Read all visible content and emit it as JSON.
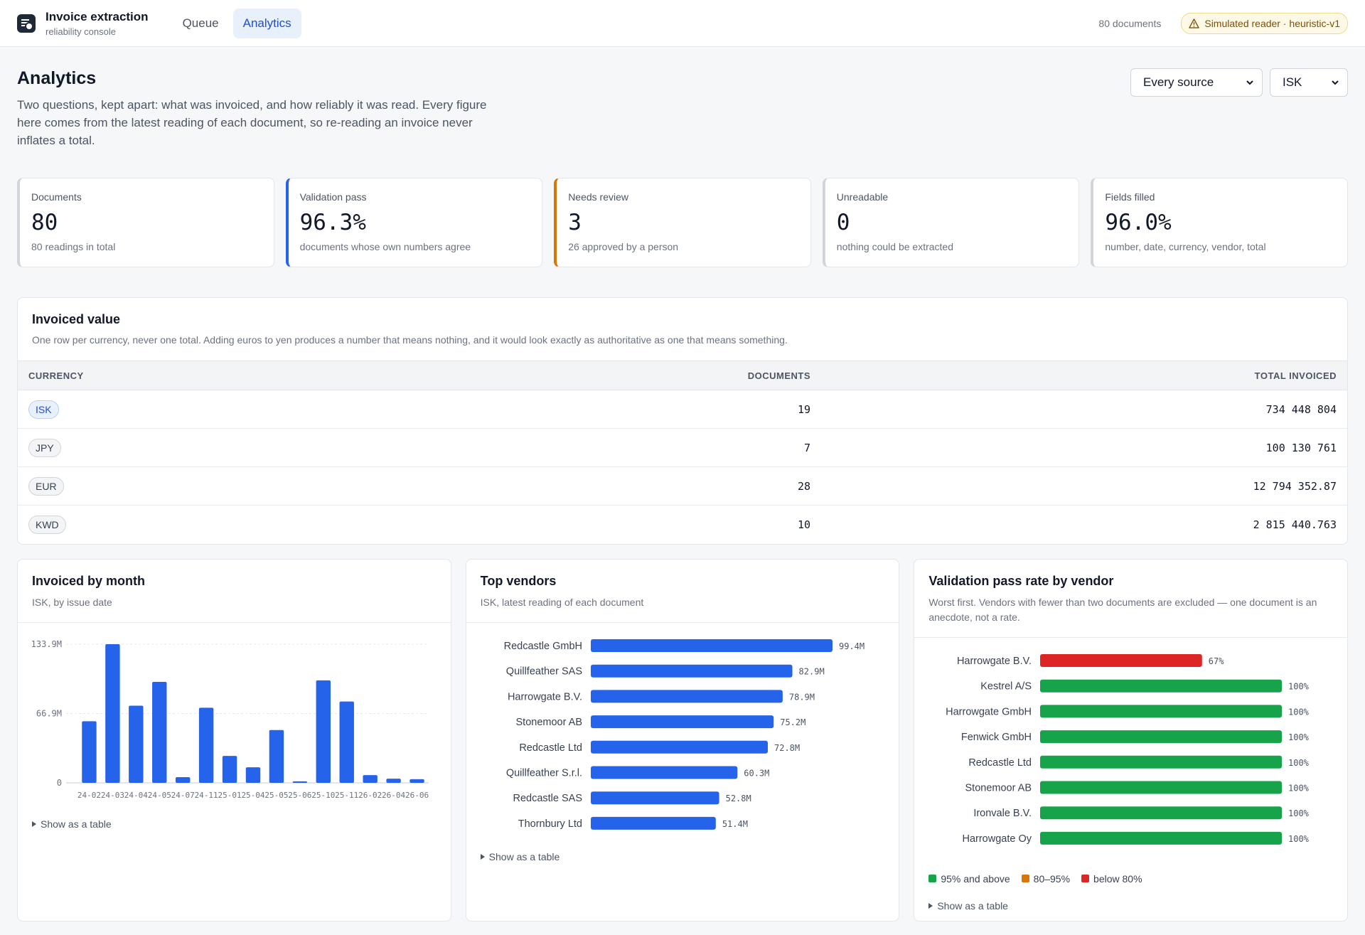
{
  "app": {
    "title": "Invoice extraction",
    "subtitle": "reliability console",
    "nav": [
      "Queue",
      "Analytics"
    ],
    "doc_count": "80 documents",
    "reader_badge": "Simulated reader · heuristic-v1"
  },
  "page": {
    "title": "Analytics",
    "description": "Two questions, kept apart: what was invoiced, and how reliably it was read. Every figure here comes from the latest reading of each document, so re-reading an invoice never inflates a total.",
    "source_filter": "Every source",
    "currency_filter": "ISK"
  },
  "kpis": [
    {
      "label": "Documents",
      "value": "80",
      "sub": "80 readings in total"
    },
    {
      "label": "Validation pass",
      "value": "96.3%",
      "sub": "documents whose own numbers agree"
    },
    {
      "label": "Needs review",
      "value": "3",
      "sub": "26 approved by a person"
    },
    {
      "label": "Unreadable",
      "value": "0",
      "sub": "nothing could be extracted"
    },
    {
      "label": "Fields filled",
      "value": "96.0%",
      "sub": "number, date, currency, vendor, total"
    }
  ],
  "invoiced": {
    "title": "Invoiced value",
    "description": "One row per currency, never one total. Adding euros to yen produces a number that means nothing, and it would look exactly as authoritative as one that means something.",
    "headers": [
      "CURRENCY",
      "DOCUMENTS",
      "TOTAL INVOICED"
    ],
    "rows": [
      {
        "currency": "ISK",
        "documents": "19",
        "total": "734 448 804"
      },
      {
        "currency": "JPY",
        "documents": "7",
        "total": "100 130 761"
      },
      {
        "currency": "EUR",
        "documents": "28",
        "total": "12 794 352.87"
      },
      {
        "currency": "KWD",
        "documents": "10",
        "total": "2 815 440.763"
      }
    ]
  },
  "toggle_label": "Show as a table",
  "chart_data": [
    {
      "type": "bar",
      "title": "Invoiced by month",
      "subtitle": "ISK, by issue date",
      "categories": [
        "24-02",
        "24-03",
        "24-04",
        "24-05",
        "24-07",
        "24-11",
        "25-01",
        "25-04",
        "25-05",
        "25-06",
        "25-10",
        "25-11",
        "26-02",
        "26-04",
        "26-06"
      ],
      "values": [
        59.5,
        133.9,
        74.5,
        97.5,
        5.5,
        72.5,
        26,
        15,
        51,
        1.5,
        99,
        78.5,
        7.5,
        4,
        3.5
      ],
      "yticks": [
        "0",
        "66.9M",
        "133.9M"
      ],
      "ylim": [
        0,
        133.9
      ],
      "unit": "M",
      "grid": true,
      "color": "#2563eb"
    },
    {
      "type": "bar",
      "orientation": "horizontal",
      "title": "Top vendors",
      "subtitle": "ISK, latest reading of each document",
      "categories": [
        "Redcastle GmbH",
        "Quillfeather SAS",
        "Harrowgate B.V.",
        "Stonemoor AB",
        "Redcastle Ltd",
        "Quillfeather S.r.l.",
        "Redcastle SAS",
        "Thornbury Ltd"
      ],
      "values": [
        99.4,
        82.9,
        78.9,
        75.2,
        72.8,
        60.3,
        52.8,
        51.4
      ],
      "labels": [
        "99.4M",
        "82.9M",
        "78.9M",
        "75.2M",
        "72.8M",
        "60.3M",
        "52.8M",
        "51.4M"
      ],
      "xlim": [
        0,
        99.4
      ],
      "color": "#2563eb"
    },
    {
      "type": "bar",
      "orientation": "horizontal",
      "title": "Validation pass rate by vendor",
      "subtitle": "Worst first. Vendors with fewer than two documents are excluded — one document is an anecdote, not a rate.",
      "categories": [
        "Harrowgate B.V.",
        "Kestrel A/S",
        "Harrowgate GmbH",
        "Fenwick GmbH",
        "Redcastle Ltd",
        "Stonemoor AB",
        "Ironvale B.V.",
        "Harrowgate Oy"
      ],
      "values": [
        67,
        100,
        100,
        100,
        100,
        100,
        100,
        100
      ],
      "labels": [
        "67%",
        "100%",
        "100%",
        "100%",
        "100%",
        "100%",
        "100%",
        "100%"
      ],
      "xlim": [
        0,
        100
      ],
      "legend": [
        {
          "label": "95% and above",
          "color": "#16a34a"
        },
        {
          "label": "80–95%",
          "color": "#d97706"
        },
        {
          "label": "below 80%",
          "color": "#dc2626"
        }
      ]
    }
  ]
}
